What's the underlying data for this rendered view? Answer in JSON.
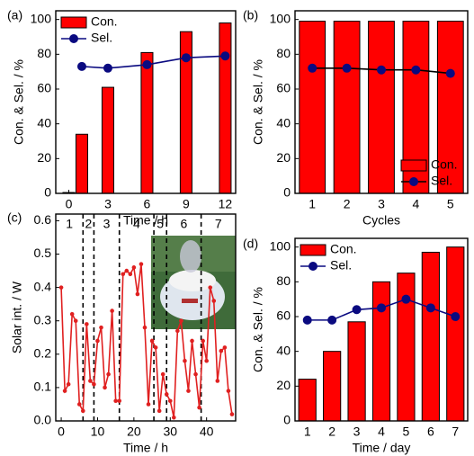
{
  "chart_data": [
    {
      "type": "combo",
      "label": "(a)",
      "xlabel": "Time / h",
      "ylabel": "Con. & Sel. / %",
      "x": [
        0,
        1,
        3,
        6,
        9,
        12
      ],
      "xlim": [
        -1,
        12.8
      ],
      "xticks": [
        0,
        3,
        6,
        9,
        12
      ],
      "ylim": [
        0,
        105
      ],
      "yticks": [
        0,
        20,
        40,
        60,
        80,
        100
      ],
      "legend": "upper left",
      "series": [
        {
          "name": "Con.",
          "type": "bar",
          "color": "#ff0000",
          "values": [
            0.5,
            34,
            61,
            81,
            93,
            98
          ]
        },
        {
          "name": "Sel.",
          "type": "line",
          "color": "#0a0a80",
          "line_color": "#0a0a80",
          "values": [
            null,
            73,
            72,
            74,
            78,
            79
          ]
        }
      ]
    },
    {
      "type": "combo",
      "label": "(b)",
      "xlabel": "Cycles",
      "ylabel": "Con. & Sel. / %",
      "categories": [
        "1",
        "2",
        "3",
        "4",
        "5"
      ],
      "ylim": [
        0,
        105
      ],
      "yticks": [
        0,
        20,
        40,
        60,
        80,
        100
      ],
      "legend": "lower right",
      "series": [
        {
          "name": "Con.",
          "type": "bar",
          "color": "#ff0000",
          "values": [
            99,
            99,
            99,
            99,
            99
          ]
        },
        {
          "name": "Sel.",
          "type": "line",
          "color": "#0a0a80",
          "line_color": "#000000",
          "values": [
            72,
            72,
            71,
            71,
            69
          ]
        }
      ]
    },
    {
      "type": "line",
      "label": "(c)",
      "xlabel": "Time / h",
      "ylabel": "Solar int. / W",
      "x": [
        0,
        1,
        2,
        3,
        4,
        5,
        6,
        7,
        8,
        9,
        10,
        11,
        12,
        13,
        14,
        15,
        16,
        17,
        18,
        19,
        20,
        21,
        22,
        23,
        24,
        25,
        26,
        27,
        28,
        29,
        30,
        31,
        32,
        33,
        34,
        35,
        36,
        37,
        38,
        39,
        40,
        41,
        42,
        43,
        44,
        45,
        46,
        47
      ],
      "values": [
        0.4,
        0.09,
        0.11,
        0.32,
        0.3,
        0.05,
        0.03,
        0.29,
        0.12,
        0.11,
        0.24,
        0.28,
        0.1,
        0.14,
        0.33,
        0.06,
        0.06,
        0.44,
        0.45,
        0.44,
        0.46,
        0.38,
        0.47,
        0.28,
        0.05,
        0.24,
        0.22,
        0.03,
        0.14,
        0.08,
        0.06,
        0.01,
        0.27,
        0.3,
        0.18,
        0.09,
        0.24,
        0.14,
        0.04,
        0.24,
        0.18,
        0.4,
        0.36,
        0.12,
        0.21,
        0.22,
        0.09,
        0.02
      ],
      "color": "#e02020",
      "xlim": [
        -1.5,
        48
      ],
      "xticks": [
        0,
        10,
        20,
        30,
        40
      ],
      "ylim": [
        0,
        0.62
      ],
      "yticks": [
        {
          "value": 0,
          "label": "0.0"
        },
        0.1,
        0.2,
        0.3,
        0.4,
        0.5,
        0.6
      ],
      "dividers": [
        6,
        9,
        16,
        25.5,
        29,
        38.5
      ],
      "regions": [
        "1",
        "2",
        "3",
        "4",
        "5",
        "6",
        "7"
      ]
    },
    {
      "type": "combo",
      "label": "(d)",
      "xlabel": "Time / day",
      "ylabel": "Con. & Sel. / %",
      "categories": [
        "1",
        "2",
        "3",
        "4",
        "5",
        "6",
        "7"
      ],
      "ylim": [
        0,
        105
      ],
      "yticks": [
        0,
        20,
        40,
        60,
        80,
        100
      ],
      "legend": "upper left",
      "series": [
        {
          "name": "Con.",
          "type": "bar",
          "color": "#ff0000",
          "values": [
            24,
            40,
            57,
            80,
            85,
            97,
            100
          ]
        },
        {
          "name": "Sel.",
          "type": "line",
          "color": "#0a0a80",
          "line_color": "#0a0a80",
          "values": [
            58,
            58,
            64,
            65,
            70,
            65,
            60
          ]
        }
      ]
    }
  ]
}
